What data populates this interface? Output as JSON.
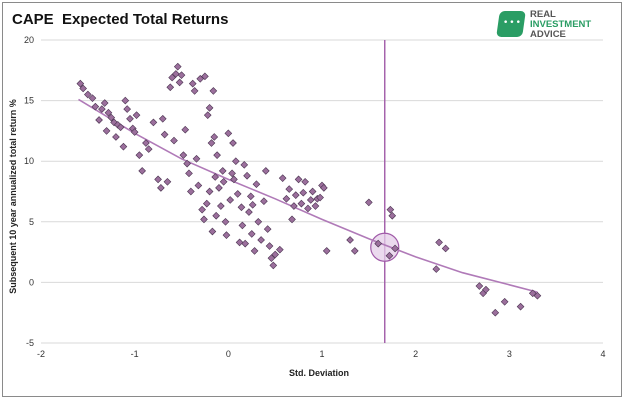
{
  "chart_data": {
    "type": "scatter",
    "title": "CAPE  Expected Total Returns",
    "xlabel": "Std. Deviation",
    "ylabel": "Subsequent 10 year annualized total return %",
    "xlim": [
      -2,
      4
    ],
    "ylim": [
      -5,
      20
    ],
    "xticks": [
      -2,
      -1,
      0,
      1,
      2,
      3,
      4
    ],
    "yticks": [
      -5,
      0,
      5,
      10,
      15,
      20
    ],
    "grid": "horizontal",
    "colors": {
      "marker": "#9b6f9c",
      "marker_edge": "#4a3350",
      "trend": "#b07ab8",
      "vline": "#a05aa8",
      "circle_fill": "#e4cde8"
    },
    "vertical_line_x": 1.67,
    "highlight": {
      "x": 1.67,
      "y": 2.9
    },
    "trendline": [
      [
        -1.6,
        15.1
      ],
      [
        -1.0,
        12.3
      ],
      [
        -0.5,
        10.2
      ],
      [
        0,
        8.5
      ],
      [
        0.5,
        6.9
      ],
      [
        1.0,
        5.2
      ],
      [
        1.5,
        3.6
      ],
      [
        2.0,
        2.1
      ],
      [
        2.5,
        0.8
      ],
      [
        3.0,
        -0.2
      ],
      [
        3.3,
        -0.8
      ]
    ],
    "points": [
      [
        -1.58,
        16.4
      ],
      [
        -1.55,
        16.0
      ],
      [
        -1.5,
        15.5
      ],
      [
        -1.45,
        15.2
      ],
      [
        -1.42,
        14.5
      ],
      [
        -1.38,
        13.4
      ],
      [
        -1.35,
        14.3
      ],
      [
        -1.32,
        14.8
      ],
      [
        -1.3,
        12.5
      ],
      [
        -1.28,
        14.0
      ],
      [
        -1.25,
        13.6
      ],
      [
        -1.22,
        13.2
      ],
      [
        -1.2,
        12.0
      ],
      [
        -1.18,
        13.0
      ],
      [
        -1.15,
        12.8
      ],
      [
        -1.12,
        11.2
      ],
      [
        -1.1,
        15.0
      ],
      [
        -1.08,
        14.3
      ],
      [
        -1.05,
        13.5
      ],
      [
        -1.02,
        12.7
      ],
      [
        -1.0,
        12.4
      ],
      [
        -0.98,
        13.8
      ],
      [
        -0.95,
        10.5
      ],
      [
        -0.92,
        9.2
      ],
      [
        -0.88,
        11.5
      ],
      [
        -0.85,
        11.0
      ],
      [
        -0.8,
        13.2
      ],
      [
        -0.75,
        8.5
      ],
      [
        -0.72,
        7.8
      ],
      [
        -0.7,
        13.5
      ],
      [
        -0.68,
        12.2
      ],
      [
        -0.65,
        8.3
      ],
      [
        -0.62,
        16.1
      ],
      [
        -0.6,
        16.9
      ],
      [
        -0.58,
        11.7
      ],
      [
        -0.56,
        17.2
      ],
      [
        -0.54,
        17.8
      ],
      [
        -0.52,
        16.5
      ],
      [
        -0.5,
        17.1
      ],
      [
        -0.48,
        10.5
      ],
      [
        -0.46,
        12.6
      ],
      [
        -0.44,
        9.8
      ],
      [
        -0.42,
        9.0
      ],
      [
        -0.4,
        7.5
      ],
      [
        -0.38,
        16.4
      ],
      [
        -0.36,
        15.8
      ],
      [
        -0.34,
        10.2
      ],
      [
        -0.32,
        8.0
      ],
      [
        -0.3,
        16.8
      ],
      [
        -0.28,
        6.0
      ],
      [
        -0.26,
        5.2
      ],
      [
        -0.25,
        17.0
      ],
      [
        -0.23,
        6.5
      ],
      [
        -0.22,
        13.8
      ],
      [
        -0.2,
        14.4
      ],
      [
        -0.2,
        7.5
      ],
      [
        -0.18,
        11.5
      ],
      [
        -0.17,
        4.2
      ],
      [
        -0.16,
        15.8
      ],
      [
        -0.15,
        12.0
      ],
      [
        -0.14,
        8.7
      ],
      [
        -0.13,
        5.5
      ],
      [
        -0.12,
        10.5
      ],
      [
        -0.1,
        7.8
      ],
      [
        -0.08,
        6.3
      ],
      [
        -0.06,
        9.2
      ],
      [
        -0.05,
        8.3
      ],
      [
        -0.03,
        5.0
      ],
      [
        -0.02,
        3.9
      ],
      [
        0.0,
        12.3
      ],
      [
        0.02,
        6.8
      ],
      [
        0.04,
        9.0
      ],
      [
        0.05,
        11.5
      ],
      [
        0.06,
        8.5
      ],
      [
        0.08,
        10.0
      ],
      [
        0.1,
        7.3
      ],
      [
        0.12,
        3.3
      ],
      [
        0.14,
        6.2
      ],
      [
        0.15,
        4.7
      ],
      [
        0.17,
        9.7
      ],
      [
        0.18,
        3.2
      ],
      [
        0.2,
        8.8
      ],
      [
        0.22,
        5.8
      ],
      [
        0.24,
        7.1
      ],
      [
        0.25,
        4.0
      ],
      [
        0.26,
        6.4
      ],
      [
        0.28,
        2.6
      ],
      [
        0.3,
        8.1
      ],
      [
        0.32,
        5.0
      ],
      [
        0.35,
        3.5
      ],
      [
        0.38,
        6.7
      ],
      [
        0.4,
        9.2
      ],
      [
        0.42,
        4.4
      ],
      [
        0.44,
        3.0
      ],
      [
        0.46,
        2.0
      ],
      [
        0.48,
        1.4
      ],
      [
        0.5,
        2.3
      ],
      [
        0.55,
        2.7
      ],
      [
        0.58,
        8.6
      ],
      [
        0.62,
        6.9
      ],
      [
        0.65,
        7.7
      ],
      [
        0.68,
        5.2
      ],
      [
        0.7,
        6.3
      ],
      [
        0.72,
        7.2
      ],
      [
        0.75,
        8.5
      ],
      [
        0.78,
        6.5
      ],
      [
        0.8,
        7.4
      ],
      [
        0.82,
        8.3
      ],
      [
        0.85,
        6.1
      ],
      [
        0.88,
        6.8
      ],
      [
        0.9,
        7.5
      ],
      [
        0.93,
        6.3
      ],
      [
        0.95,
        6.9
      ],
      [
        0.98,
        7.0
      ],
      [
        1.0,
        8.0
      ],
      [
        1.02,
        7.8
      ],
      [
        1.05,
        2.6
      ],
      [
        1.3,
        3.5
      ],
      [
        1.35,
        2.6
      ],
      [
        1.5,
        6.6
      ],
      [
        1.6,
        3.2
      ],
      [
        1.72,
        2.2
      ],
      [
        1.73,
        6.0
      ],
      [
        1.75,
        5.5
      ],
      [
        1.78,
        2.8
      ],
      [
        2.22,
        1.1
      ],
      [
        2.25,
        3.3
      ],
      [
        2.32,
        2.8
      ],
      [
        2.68,
        -0.3
      ],
      [
        2.72,
        -0.9
      ],
      [
        2.75,
        -0.6
      ],
      [
        2.85,
        -2.5
      ],
      [
        2.95,
        -1.6
      ],
      [
        3.12,
        -2.0
      ],
      [
        3.25,
        -0.9
      ],
      [
        3.3,
        -1.1
      ]
    ]
  },
  "logo": {
    "line1": "REAL",
    "line2": "INVESTMENT",
    "line3": "ADVICE"
  }
}
